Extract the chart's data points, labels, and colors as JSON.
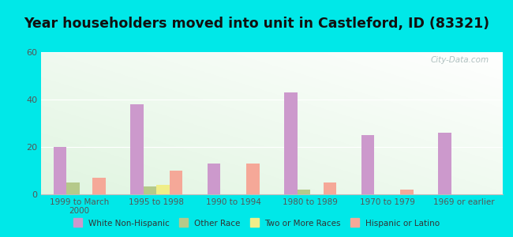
{
  "title": "Year householders moved into unit in Castleford, ID (83321)",
  "categories": [
    "1999 to March\n2000",
    "1995 to 1998",
    "1990 to 1994",
    "1980 to 1989",
    "1970 to 1979",
    "1969 or earlier"
  ],
  "series": {
    "White Non-Hispanic": [
      20,
      38,
      13,
      43,
      25,
      26
    ],
    "Other Race": [
      5,
      3.5,
      0,
      2,
      0,
      0
    ],
    "Two or More Races": [
      0,
      4,
      0,
      0,
      0,
      0
    ],
    "Hispanic or Latino": [
      7,
      10,
      13,
      5,
      2,
      0
    ]
  },
  "colors": {
    "White Non-Hispanic": "#cc99cc",
    "Other Race": "#b5c98a",
    "Two or More Races": "#f0ee88",
    "Hispanic or Latino": "#f5a898"
  },
  "ylim": [
    0,
    60
  ],
  "yticks": [
    0,
    20,
    40,
    60
  ],
  "background_color": "#00e8e8",
  "watermark": "City-Data.com",
  "bar_width": 0.17,
  "title_fontsize": 12.5
}
